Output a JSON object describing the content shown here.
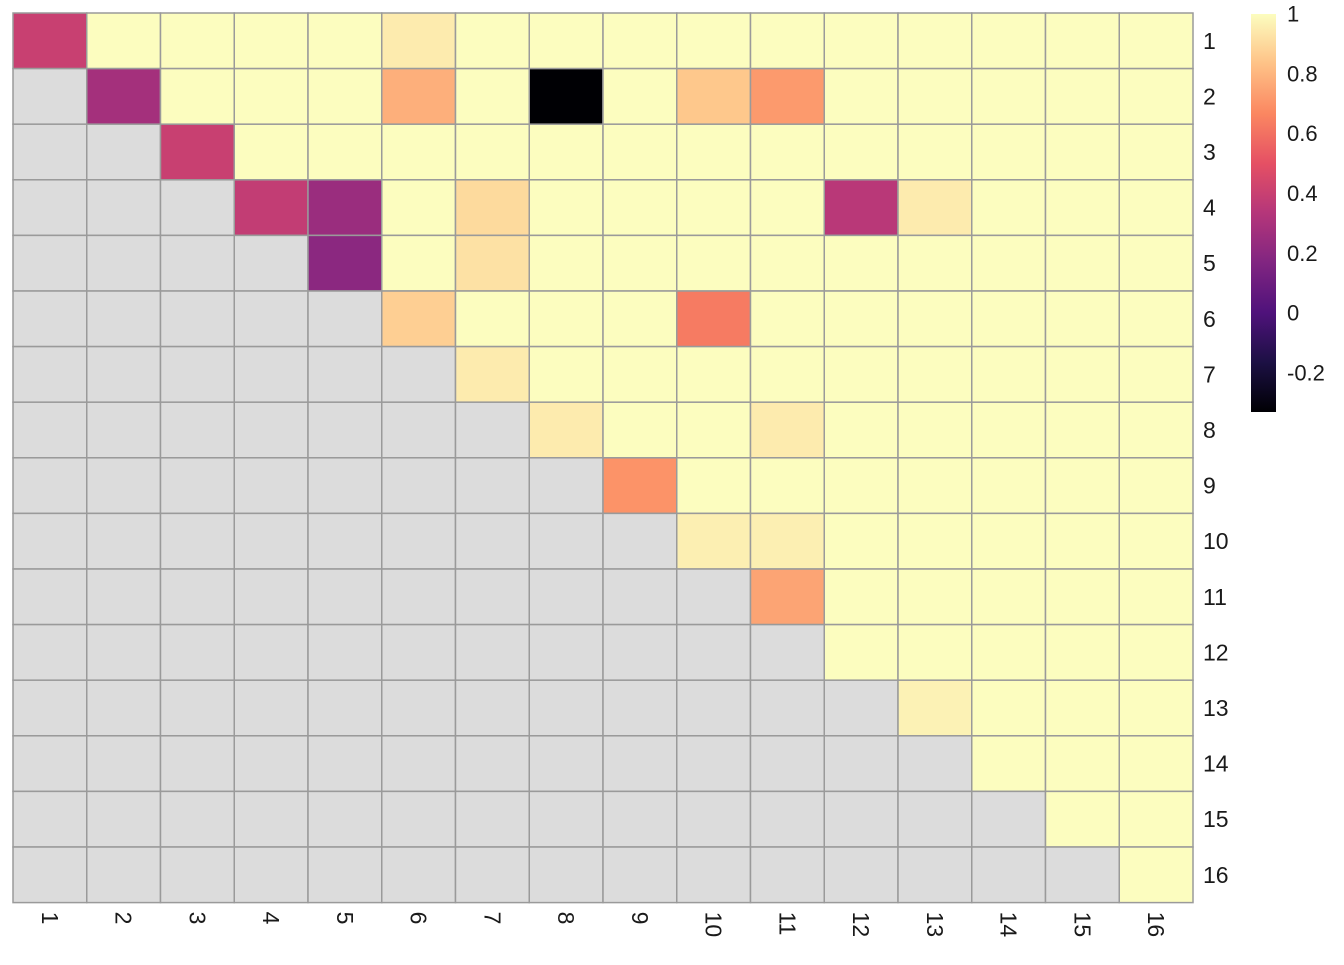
{
  "chart_data": {
    "type": "heatmap",
    "title": "",
    "xlabel": "",
    "ylabel": "",
    "x_labels": [
      "1",
      "2",
      "3",
      "4",
      "5",
      "6",
      "7",
      "8",
      "9",
      "10",
      "11",
      "12",
      "13",
      "14",
      "15",
      "16"
    ],
    "y_labels": [
      "1",
      "2",
      "3",
      "4",
      "5",
      "6",
      "7",
      "8",
      "9",
      "10",
      "11",
      "12",
      "13",
      "14",
      "15",
      "16"
    ],
    "x_label_rotation": "90deg clockwise",
    "y_axis_side": "right",
    "matrix": "upper-triangular; lower triangle shown as NA (grey)",
    "na_color": "#dcdcdc",
    "grid_color": "#9a9a9a",
    "colorscale": "magma",
    "color_range": [
      -0.33,
      1.0
    ],
    "legend": {
      "position": "top-right",
      "ticks": [
        -0.2,
        0,
        0.2,
        0.4,
        0.6,
        0.8,
        1
      ],
      "tick_labels": [
        "-0.2",
        "0",
        "0.2",
        "0.4",
        "0.6",
        "0.8",
        "1"
      ]
    },
    "values": [
      [
        0.4,
        1.0,
        1.0,
        1.0,
        1.0,
        0.95,
        1.0,
        1.0,
        1.0,
        1.0,
        1.0,
        1.0,
        1.0,
        1.0,
        1.0,
        1.0
      ],
      [
        null,
        0.28,
        1.0,
        1.0,
        1.0,
        0.78,
        1.0,
        -0.33,
        1.0,
        0.85,
        0.72,
        1.0,
        1.0,
        1.0,
        1.0,
        1.0
      ],
      [
        null,
        null,
        0.4,
        1.0,
        1.0,
        1.0,
        1.0,
        1.0,
        1.0,
        1.0,
        1.0,
        1.0,
        1.0,
        1.0,
        1.0,
        1.0
      ],
      [
        null,
        null,
        null,
        0.38,
        0.25,
        1.0,
        0.9,
        1.0,
        1.0,
        1.0,
        1.0,
        0.35,
        0.95,
        1.0,
        1.0,
        1.0
      ],
      [
        null,
        null,
        null,
        null,
        0.2,
        1.0,
        0.92,
        1.0,
        1.0,
        1.0,
        1.0,
        1.0,
        1.0,
        1.0,
        1.0,
        1.0
      ],
      [
        null,
        null,
        null,
        null,
        null,
        0.87,
        1.0,
        1.0,
        1.0,
        0.63,
        1.0,
        1.0,
        1.0,
        1.0,
        1.0,
        1.0
      ],
      [
        null,
        null,
        null,
        null,
        null,
        null,
        0.95,
        1.0,
        1.0,
        1.0,
        1.0,
        1.0,
        1.0,
        1.0,
        1.0,
        1.0
      ],
      [
        null,
        null,
        null,
        null,
        null,
        null,
        null,
        0.95,
        1.0,
        1.0,
        0.95,
        1.0,
        1.0,
        1.0,
        1.0,
        1.0
      ],
      [
        null,
        null,
        null,
        null,
        null,
        null,
        null,
        null,
        0.7,
        1.0,
        1.0,
        1.0,
        1.0,
        1.0,
        1.0,
        1.0
      ],
      [
        null,
        null,
        null,
        null,
        null,
        null,
        null,
        null,
        null,
        0.96,
        0.96,
        1.0,
        1.0,
        1.0,
        1.0,
        1.0
      ],
      [
        null,
        null,
        null,
        null,
        null,
        null,
        null,
        null,
        null,
        null,
        0.75,
        1.0,
        1.0,
        1.0,
        1.0,
        1.0
      ],
      [
        null,
        null,
        null,
        null,
        null,
        null,
        null,
        null,
        null,
        null,
        null,
        1.0,
        1.0,
        1.0,
        1.0,
        1.0
      ],
      [
        null,
        null,
        null,
        null,
        null,
        null,
        null,
        null,
        null,
        null,
        null,
        null,
        0.97,
        1.0,
        1.0,
        1.0
      ],
      [
        null,
        null,
        null,
        null,
        null,
        null,
        null,
        null,
        null,
        null,
        null,
        null,
        null,
        1.0,
        1.0,
        1.0
      ],
      [
        null,
        null,
        null,
        null,
        null,
        null,
        null,
        null,
        null,
        null,
        null,
        null,
        null,
        null,
        1.0,
        1.0
      ],
      [
        null,
        null,
        null,
        null,
        null,
        null,
        null,
        null,
        null,
        null,
        null,
        null,
        null,
        null,
        null,
        1.0
      ]
    ]
  }
}
